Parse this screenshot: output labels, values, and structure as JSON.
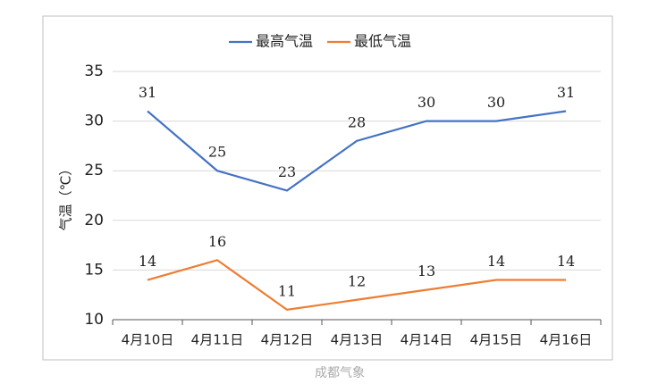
{
  "chart_data": {
    "type": "line",
    "categories": [
      "4月10日",
      "4月11日",
      "4月12日",
      "4月13日",
      "4月14日",
      "4月15日",
      "4月16日"
    ],
    "series": [
      {
        "name": "最高气温",
        "color": "#4472c4",
        "values": [
          31,
          25,
          23,
          28,
          30,
          30,
          31
        ]
      },
      {
        "name": "最低气温",
        "color": "#ed7d31",
        "values": [
          14,
          16,
          11,
          12,
          13,
          14,
          14
        ]
      }
    ],
    "y_label": "气温（℃）",
    "ylim": [
      10,
      35
    ],
    "yticks": [
      10,
      15,
      20,
      25,
      30,
      35
    ],
    "grid": true,
    "legend": "top",
    "watermark": "成都气象"
  }
}
